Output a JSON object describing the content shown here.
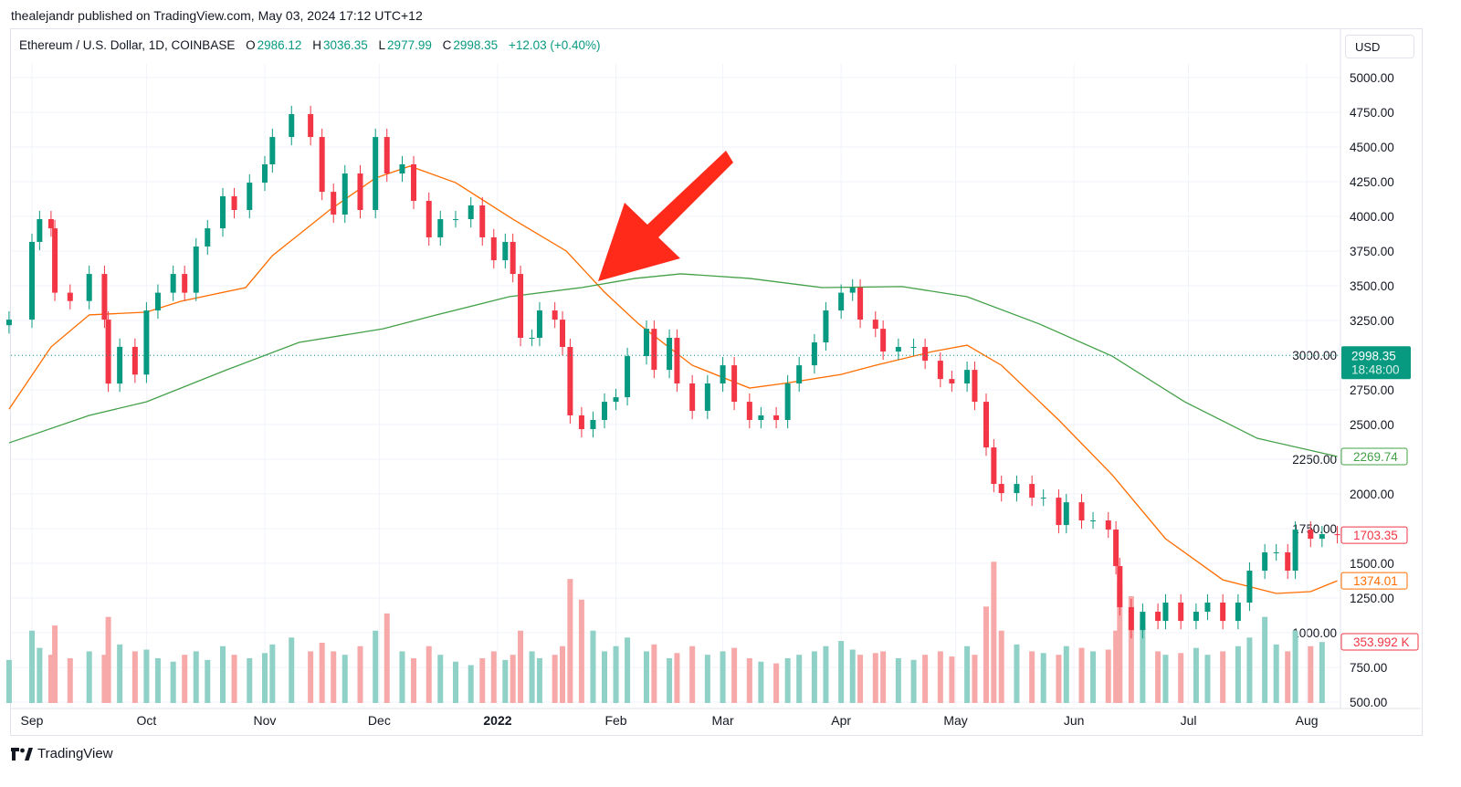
{
  "publisher_line": "thealejandr published on TradingView.com, May 03, 2024 17:12 UTC+12",
  "legend": {
    "symbol": "Ethereum / U.S. Dollar, 1D, COINBASE",
    "o_label": "O",
    "o": "2986.12",
    "h_label": "H",
    "h": "3036.35",
    "l_label": "L",
    "l": "2977.99",
    "c_label": "C",
    "c": "2998.35",
    "change": "+12.03 (+0.40%)"
  },
  "currency_button": "USD",
  "footer": {
    "brand": "TradingView",
    "logo_icon": "tradingview-logo-icon"
  },
  "colors": {
    "up": "#089981",
    "down": "#f23645",
    "ma_fast": "#ff6d00",
    "ma_slow": "#43a047",
    "volume_up": "#8fd1c6",
    "volume_down": "#f7a9a9",
    "arrow": "#ff2a1a",
    "grid": "#f0f3fa"
  },
  "chart_data": {
    "type": "candlestick",
    "title": "Ethereum / U.S. Dollar, 1D, COINBASE",
    "ylim": [
      500,
      5000
    ],
    "y_ticks": [
      "5000.00",
      "4750.00",
      "4500.00",
      "4250.00",
      "4000.00",
      "3750.00",
      "3500.00",
      "3250.00",
      "3000.00",
      "2750.00",
      "2500.00",
      "2250.00",
      "2000.00",
      "1750.00",
      "1500.00",
      "1250.00",
      "1000.00",
      "750.00",
      "500.00"
    ],
    "x_ticks": [
      {
        "label": "Sep",
        "date": "2021-09-01"
      },
      {
        "label": "Oct",
        "date": "2021-10-01"
      },
      {
        "label": "Nov",
        "date": "2021-11-01"
      },
      {
        "label": "Dec",
        "date": "2021-12-01"
      },
      {
        "label": "2022",
        "date": "2022-01-01",
        "bold": true
      },
      {
        "label": "Feb",
        "date": "2022-02-01"
      },
      {
        "label": "Mar",
        "date": "2022-03-01"
      },
      {
        "label": "Apr",
        "date": "2022-04-01"
      },
      {
        "label": "May",
        "date": "2022-05-01"
      },
      {
        "label": "Jun",
        "date": "2022-06-01"
      },
      {
        "label": "Jul",
        "date": "2022-07-01"
      },
      {
        "label": "Aug",
        "date": "2022-08-01"
      }
    ],
    "grid": true,
    "close": [
      [
        "2021-08-26",
        3256
      ],
      [
        "2021-09-01",
        3816
      ],
      [
        "2021-09-03",
        3980
      ],
      [
        "2021-09-06",
        3914
      ],
      [
        "2021-09-07",
        3450
      ],
      [
        "2021-09-11",
        3390
      ],
      [
        "2021-09-16",
        3585
      ],
      [
        "2021-09-20",
        3256
      ],
      [
        "2021-09-21",
        2795
      ],
      [
        "2021-09-24",
        3060
      ],
      [
        "2021-09-28",
        2860
      ],
      [
        "2021-10-01",
        3322
      ],
      [
        "2021-10-04",
        3450
      ],
      [
        "2021-10-08",
        3585
      ],
      [
        "2021-10-11",
        3450
      ],
      [
        "2021-10-14",
        3783
      ],
      [
        "2021-10-17",
        3914
      ],
      [
        "2021-10-21",
        4145
      ],
      [
        "2021-10-24",
        4046
      ],
      [
        "2021-10-28",
        4243
      ],
      [
        "2021-11-01",
        4375
      ],
      [
        "2021-11-03",
        4572
      ],
      [
        "2021-11-08",
        4737
      ],
      [
        "2021-11-13",
        4572
      ],
      [
        "2021-11-16",
        4177
      ],
      [
        "2021-11-19",
        4013
      ],
      [
        "2021-11-22",
        4309
      ],
      [
        "2021-11-26",
        4046
      ],
      [
        "2021-11-30",
        4572
      ],
      [
        "2021-12-03",
        4309
      ],
      [
        "2021-12-07",
        4375
      ],
      [
        "2021-12-10",
        4112
      ],
      [
        "2021-12-14",
        3849
      ],
      [
        "2021-12-17",
        3980
      ],
      [
        "2021-12-21",
        3980
      ],
      [
        "2021-12-25",
        4079
      ],
      [
        "2021-12-28",
        3849
      ],
      [
        "2021-12-31",
        3684
      ],
      [
        "2022-01-03",
        3816
      ],
      [
        "2022-01-05",
        3585
      ],
      [
        "2022-01-07",
        3125
      ],
      [
        "2022-01-10",
        3125
      ],
      [
        "2022-01-12",
        3322
      ],
      [
        "2022-01-16",
        3256
      ],
      [
        "2022-01-18",
        3059
      ],
      [
        "2022-01-20",
        2566
      ],
      [
        "2022-01-23",
        2467
      ],
      [
        "2022-01-26",
        2533
      ],
      [
        "2022-01-29",
        2664
      ],
      [
        "2022-02-01",
        2697
      ],
      [
        "2022-02-04",
        2993
      ],
      [
        "2022-02-09",
        3190
      ],
      [
        "2022-02-11",
        2894
      ],
      [
        "2022-02-15",
        3125
      ],
      [
        "2022-02-17",
        2796
      ],
      [
        "2022-02-21",
        2599
      ],
      [
        "2022-02-25",
        2796
      ],
      [
        "2022-03-01",
        2927
      ],
      [
        "2022-03-04",
        2664
      ],
      [
        "2022-03-08",
        2533
      ],
      [
        "2022-03-11",
        2566
      ],
      [
        "2022-03-15",
        2533
      ],
      [
        "2022-03-18",
        2796
      ],
      [
        "2022-03-21",
        2927
      ],
      [
        "2022-03-25",
        3092
      ],
      [
        "2022-03-28",
        3322
      ],
      [
        "2022-04-01",
        3450
      ],
      [
        "2022-04-04",
        3487
      ],
      [
        "2022-04-06",
        3256
      ],
      [
        "2022-04-10",
        3190
      ],
      [
        "2022-04-12",
        3026
      ],
      [
        "2022-04-16",
        3059
      ],
      [
        "2022-04-20",
        3059
      ],
      [
        "2022-04-23",
        2960
      ],
      [
        "2022-04-27",
        2828
      ],
      [
        "2022-04-30",
        2796
      ],
      [
        "2022-05-04",
        2894
      ],
      [
        "2022-05-06",
        2664
      ],
      [
        "2022-05-09",
        2335
      ],
      [
        "2022-05-11",
        2072
      ],
      [
        "2022-05-13",
        2006
      ],
      [
        "2022-05-17",
        2072
      ],
      [
        "2022-05-21",
        1973
      ],
      [
        "2022-05-24",
        1973
      ],
      [
        "2022-05-28",
        1776
      ],
      [
        "2022-05-30",
        1940
      ],
      [
        "2022-06-03",
        1809
      ],
      [
        "2022-06-06",
        1809
      ],
      [
        "2022-06-10",
        1743
      ],
      [
        "2022-06-12",
        1480
      ],
      [
        "2022-06-13",
        1184
      ],
      [
        "2022-06-16",
        1019
      ],
      [
        "2022-06-19",
        1151
      ],
      [
        "2022-06-23",
        1085
      ],
      [
        "2022-06-25",
        1217
      ],
      [
        "2022-06-29",
        1085
      ],
      [
        "2022-07-03",
        1151
      ],
      [
        "2022-07-06",
        1217
      ],
      [
        "2022-07-10",
        1085
      ],
      [
        "2022-07-14",
        1217
      ],
      [
        "2022-07-17",
        1447
      ],
      [
        "2022-07-21",
        1579
      ],
      [
        "2022-07-24",
        1579
      ],
      [
        "2022-07-27",
        1447
      ],
      [
        "2022-07-29",
        1743
      ],
      [
        "2022-08-02",
        1677
      ],
      [
        "2022-08-05",
        1710
      ],
      [
        "2022-08-09",
        1703
      ]
    ],
    "volume_k": [
      250,
      420,
      320,
      280,
      450,
      260,
      300,
      280,
      500,
      340,
      300,
      310,
      260,
      240,
      280,
      300,
      250,
      330,
      280,
      260,
      290,
      340,
      380,
      300,
      350,
      300,
      280,
      330,
      420,
      520,
      300,
      260,
      330,
      280,
      240,
      220,
      260,
      300,
      250,
      280,
      420,
      300,
      260,
      280,
      330,
      720,
      600,
      420,
      300,
      330,
      380,
      300,
      340,
      260,
      290,
      330,
      280,
      300,
      320,
      260,
      240,
      230,
      260,
      280,
      300,
      330,
      360,
      310,
      280,
      290,
      300,
      260,
      250,
      280,
      300,
      270,
      330,
      280,
      560,
      820,
      420,
      340,
      300,
      290,
      280,
      330,
      320,
      300,
      310,
      420,
      700,
      620,
      460,
      300,
      280,
      290,
      320,
      280,
      300,
      330,
      380,
      500,
      340,
      300,
      420,
      330,
      354
    ],
    "ma_fast": {
      "color": "#ff6d00",
      "last": "1374.01",
      "points": [
        [
          "2021-08-26",
          2611
        ],
        [
          "2021-09-06",
          3059
        ],
        [
          "2021-09-16",
          3290
        ],
        [
          "2021-10-01",
          3310
        ],
        [
          "2021-10-10",
          3388
        ],
        [
          "2021-10-27",
          3487
        ],
        [
          "2021-11-03",
          3717
        ],
        [
          "2021-11-18",
          4046
        ],
        [
          "2021-11-30",
          4276
        ],
        [
          "2021-12-09",
          4362
        ],
        [
          "2021-12-21",
          4243
        ],
        [
          "2022-01-05",
          3980
        ],
        [
          "2022-01-19",
          3750
        ],
        [
          "2022-01-29",
          3454
        ],
        [
          "2022-02-07",
          3224
        ],
        [
          "2022-02-21",
          2927
        ],
        [
          "2022-03-08",
          2763
        ],
        [
          "2022-03-17",
          2796
        ],
        [
          "2022-04-01",
          2861
        ],
        [
          "2022-04-10",
          2927
        ],
        [
          "2022-04-25",
          3026
        ],
        [
          "2022-05-04",
          3072
        ],
        [
          "2022-05-13",
          2927
        ],
        [
          "2022-05-28",
          2533
        ],
        [
          "2022-06-11",
          2138
        ],
        [
          "2022-06-25",
          1677
        ],
        [
          "2022-07-10",
          1381
        ],
        [
          "2022-07-24",
          1283
        ],
        [
          "2022-08-02",
          1296
        ],
        [
          "2022-08-09",
          1374
        ]
      ]
    },
    "ma_slow": {
      "color": "#43a047",
      "last": "2269.74",
      "points": [
        [
          "2021-08-26",
          2368
        ],
        [
          "2021-09-16",
          2566
        ],
        [
          "2021-10-01",
          2664
        ],
        [
          "2021-10-22",
          2894
        ],
        [
          "2021-11-10",
          3092
        ],
        [
          "2021-12-02",
          3190
        ],
        [
          "2021-12-16",
          3290
        ],
        [
          "2022-01-04",
          3421
        ],
        [
          "2022-01-23",
          3487
        ],
        [
          "2022-02-06",
          3553
        ],
        [
          "2022-02-18",
          3586
        ],
        [
          "2022-03-08",
          3553
        ],
        [
          "2022-03-27",
          3487
        ],
        [
          "2022-04-17",
          3494
        ],
        [
          "2022-05-04",
          3421
        ],
        [
          "2022-05-23",
          3224
        ],
        [
          "2022-06-11",
          2993
        ],
        [
          "2022-06-30",
          2664
        ],
        [
          "2022-07-19",
          2401
        ],
        [
          "2022-08-09",
          2270
        ]
      ]
    },
    "price_labels": {
      "current": "2998.35",
      "countdown": "18:48:00",
      "last_close": "1703.35",
      "volume_last": "353.992 K"
    },
    "annotations": [
      {
        "type": "arrow",
        "color": "#ff2a1a",
        "points_to": "ma crossover, 2022-01-26"
      }
    ]
  }
}
